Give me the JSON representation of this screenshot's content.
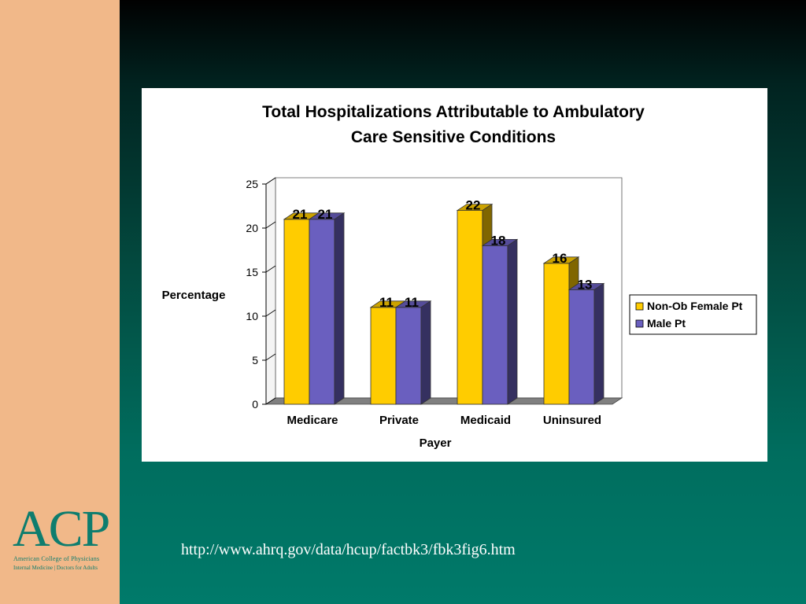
{
  "logo": {
    "acronym": "ACP",
    "org_name": "American College of Physicians",
    "tagline": "Internal Medicine | Doctors for Adults"
  },
  "source_url": "http://www.ahrq.gov/data/hcup/factbk3/fbk3fig6.htm",
  "chart_data": {
    "type": "bar",
    "title": "Total Hospitalizations Attributable to Ambulatory Care Sensitive Conditions",
    "title_lines": [
      "Total Hospitalizations Attributable to Ambulatory",
      "Care Sensitive Conditions"
    ],
    "xlabel": "Payer",
    "ylabel": "Percentage",
    "categories": [
      "Medicare",
      "Private",
      "Medicaid",
      "Uninsured"
    ],
    "series": [
      {
        "name": "Non-Ob Female Pt",
        "values": [
          21,
          11,
          22,
          16
        ],
        "color": "#ffcc00"
      },
      {
        "name": "Male Pt",
        "values": [
          21,
          11,
          18,
          13
        ],
        "color": "#6a5fbf"
      }
    ],
    "ylim": [
      0,
      25
    ],
    "yticks": [
      0,
      5,
      10,
      15,
      20,
      25
    ],
    "data_labels": true,
    "legend_position": "right",
    "grid": false,
    "style": "3d-bar"
  }
}
